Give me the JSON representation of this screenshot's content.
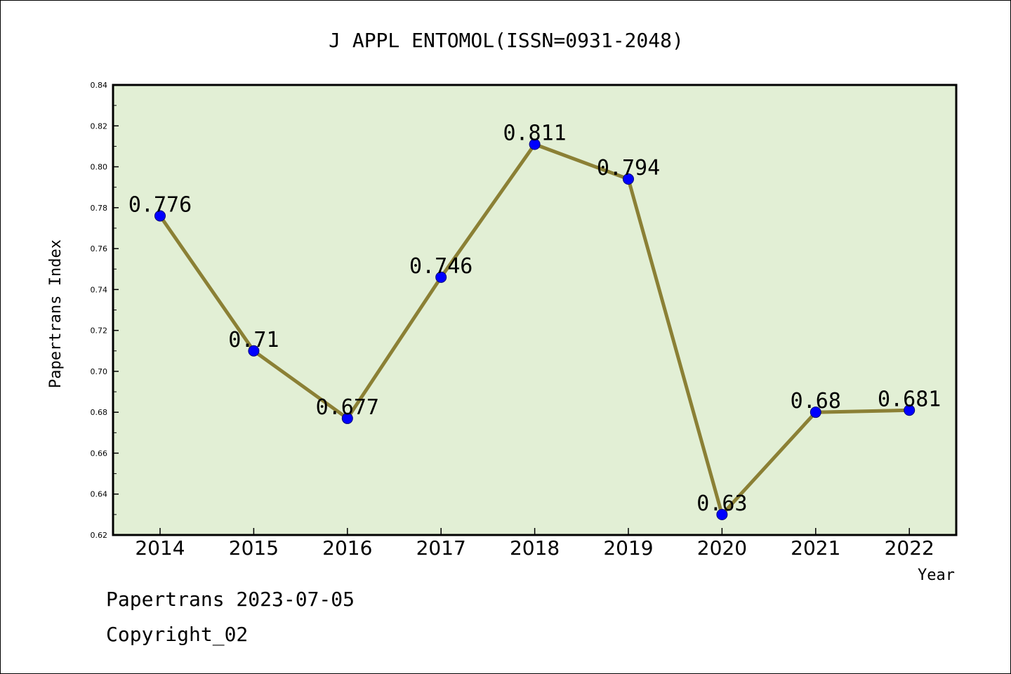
{
  "chart_data": {
    "type": "line",
    "title": "J APPL ENTOMOL(ISSN=0931-2048)",
    "xlabel": "Year",
    "ylabel": "Papertrans Index",
    "categories": [
      "2014",
      "2015",
      "2016",
      "2017",
      "2018",
      "2019",
      "2020",
      "2021",
      "2022"
    ],
    "values": [
      0.776,
      0.71,
      0.677,
      0.746,
      0.811,
      0.794,
      0.63,
      0.68,
      0.681
    ],
    "data_labels": [
      "0.776",
      "0.71",
      "0.677",
      "0.746",
      "0.811",
      "0.794",
      "0.63",
      "0.68",
      "0.681"
    ],
    "ylim": [
      0.62,
      0.84
    ],
    "yticks": [
      "0.62",
      "0.64",
      "0.66",
      "0.68",
      "0.70",
      "0.72",
      "0.74",
      "0.76",
      "0.78",
      "0.80",
      "0.82",
      "0.84"
    ],
    "grid": false,
    "legend": "none",
    "colors": {
      "plot_background": "#e2efd5",
      "line": "#8b8035",
      "marker": "#0000ff"
    }
  },
  "footer": {
    "date_text": "Papertrans 2023-07-05",
    "copyright_text": "Copyright_02"
  }
}
